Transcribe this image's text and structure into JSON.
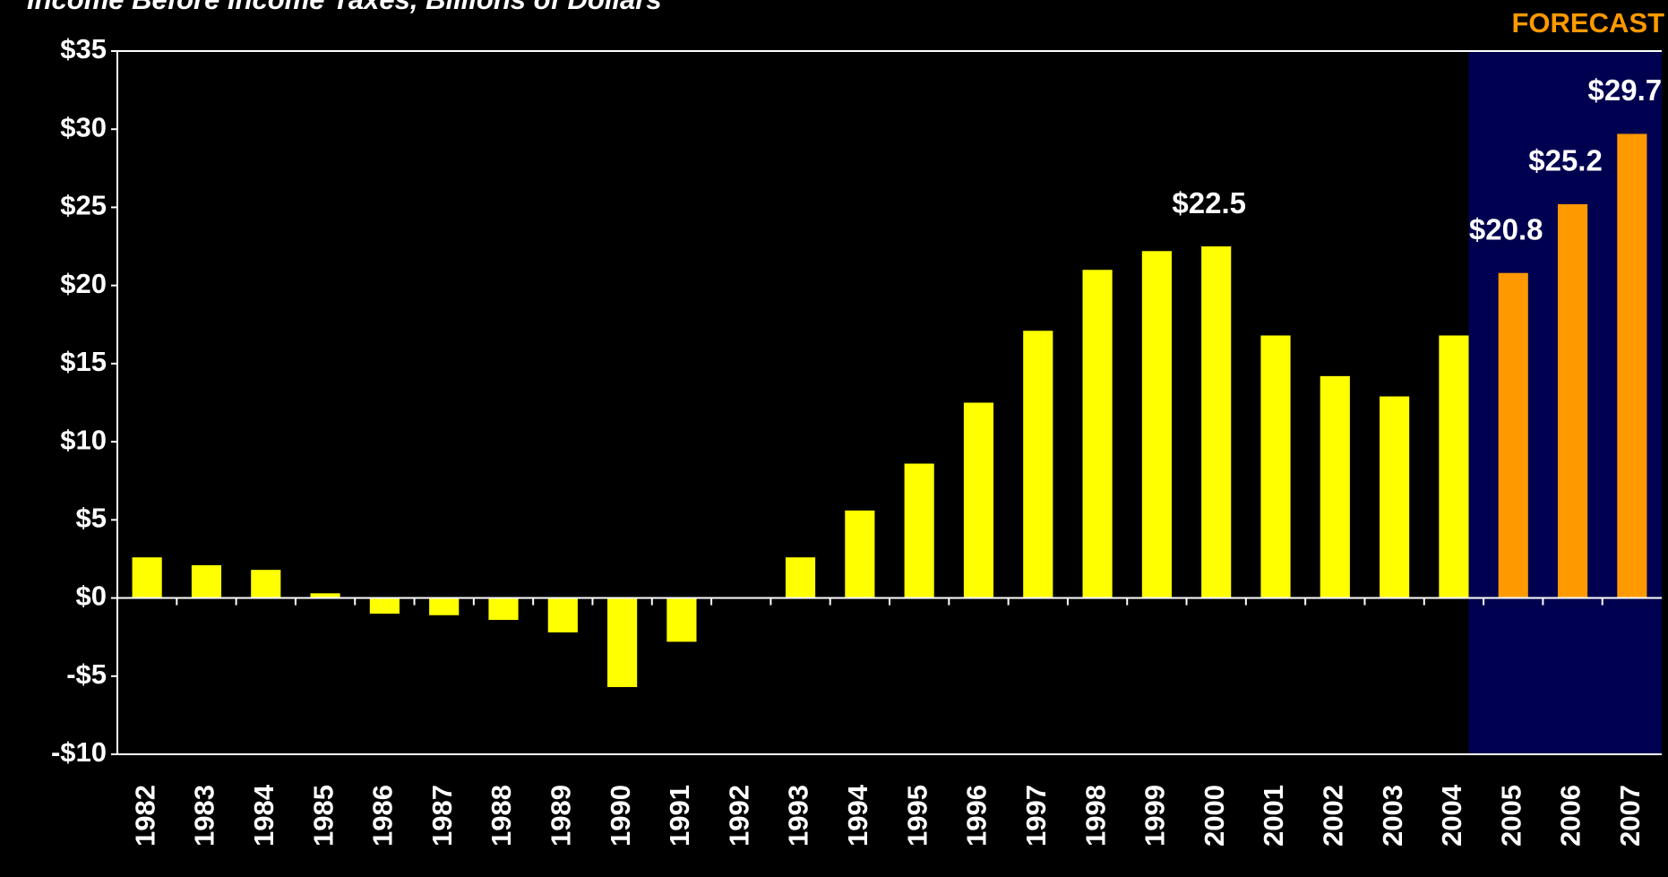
{
  "chart_data": {
    "type": "bar",
    "title": "Income Before Income Taxes, Billions of Dollars",
    "annotation": "FORECAST",
    "categories": [
      "1982",
      "1983",
      "1984",
      "1985",
      "1986",
      "1987",
      "1988",
      "1989",
      "1990",
      "1991",
      "1992",
      "1993",
      "1994",
      "1995",
      "1996",
      "1997",
      "1998",
      "1999",
      "2000",
      "2001",
      "2002",
      "2003",
      "2004",
      "2005",
      "2006",
      "2007"
    ],
    "values": [
      2.6,
      2.1,
      1.8,
      0.3,
      -1.0,
      -1.1,
      -1.4,
      -2.2,
      -5.7,
      -2.8,
      null,
      2.6,
      5.6,
      8.6,
      12.5,
      17.1,
      21.0,
      22.2,
      22.5,
      16.8,
      14.2,
      12.9,
      16.8,
      20.8,
      25.2,
      29.7
    ],
    "value_labels": [
      null,
      null,
      null,
      null,
      null,
      null,
      null,
      null,
      null,
      null,
      null,
      null,
      null,
      null,
      null,
      null,
      null,
      null,
      "$22.5",
      null,
      null,
      null,
      null,
      "$20.8",
      "$25.2",
      "$29.7"
    ],
    "colors": [
      "#ffff00",
      "#ffff00",
      "#ffff00",
      "#ffff00",
      "#ffff00",
      "#ffff00",
      "#ffff00",
      "#ffff00",
      "#ffff00",
      "#ffff00",
      "#ffff00",
      "#ffff00",
      "#ffff00",
      "#ffff00",
      "#ffff00",
      "#ffff00",
      "#ffff00",
      "#ffff00",
      "#ffff00",
      "#ffff00",
      "#ffff00",
      "#ffff00",
      "#ffff00",
      "#ff9900",
      "#ff9900",
      "#ff9900"
    ],
    "ylim": [
      -10,
      35
    ],
    "yticks": [
      {
        "value": -10,
        "label": "-$10"
      },
      {
        "value": -5,
        "label": "-$5"
      },
      {
        "value": 0,
        "label": "$0"
      },
      {
        "value": 5,
        "label": "$5"
      },
      {
        "value": 10,
        "label": "$10"
      },
      {
        "value": 15,
        "label": "$15"
      },
      {
        "value": 20,
        "label": "$20"
      },
      {
        "value": 25,
        "label": "$25"
      },
      {
        "value": 30,
        "label": "$30"
      },
      {
        "value": 35,
        "label": "$35"
      }
    ],
    "grid": false
  }
}
